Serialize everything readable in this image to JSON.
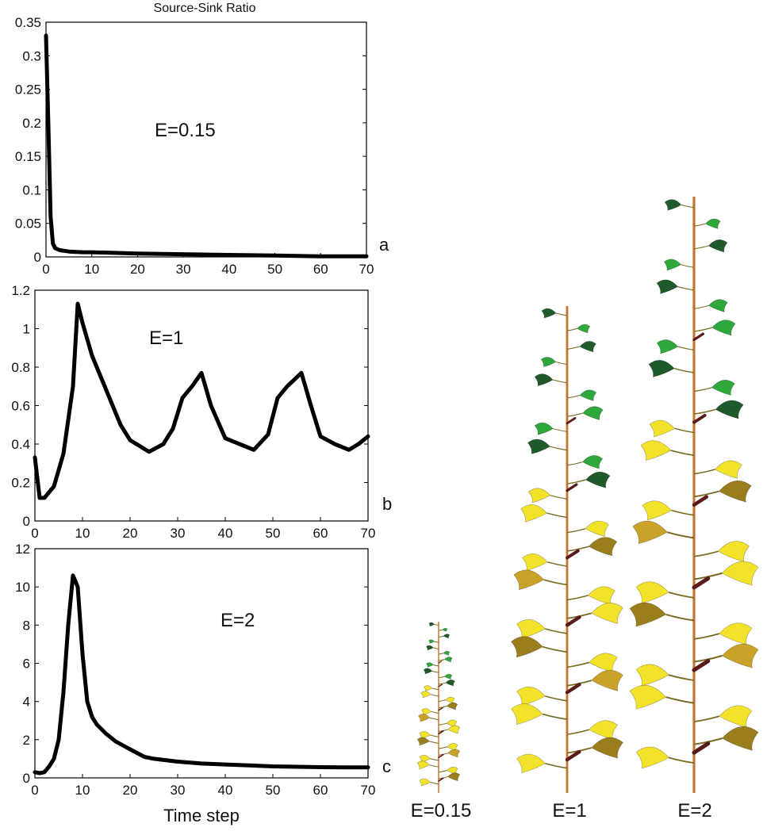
{
  "chart_data": [
    {
      "type": "line",
      "title": "Source-Sink Ratio",
      "panel_letter": "a",
      "annotation": "E=0.15",
      "xlabel": "",
      "ylabel": "",
      "xlim": [
        0,
        70
      ],
      "ylim": [
        0,
        0.35
      ],
      "xticks": [
        "0",
        "10",
        "20",
        "30",
        "40",
        "50",
        "60",
        "70"
      ],
      "yticks": [
        "0",
        "0.05",
        "0.1",
        "0.15",
        "0.2",
        "0.25",
        "0.3",
        "0.35"
      ],
      "series": [
        {
          "x": [
            0,
            0.5,
            1,
            1.5,
            2,
            3,
            5,
            8,
            10,
            15,
            20,
            30,
            40,
            50,
            60,
            70
          ],
          "y": [
            0.33,
            0.2,
            0.06,
            0.02,
            0.013,
            0.01,
            0.008,
            0.007,
            0.007,
            0.006,
            0.005,
            0.004,
            0.003,
            0.002,
            0.001,
            0.001
          ]
        }
      ]
    },
    {
      "type": "line",
      "title": "",
      "panel_letter": "b",
      "annotation": "E=1",
      "xlabel": "",
      "ylabel": "",
      "xlim": [
        0,
        70
      ],
      "ylim": [
        0,
        1.2
      ],
      "xticks": [
        "0",
        "10",
        "20",
        "30",
        "40",
        "50",
        "60",
        "70"
      ],
      "yticks": [
        "0",
        "0.2",
        "0.4",
        "0.6",
        "0.8",
        "1",
        "1.2"
      ],
      "series": [
        {
          "x": [
            0,
            1,
            2,
            4,
            6,
            8,
            9,
            10,
            12,
            15,
            18,
            20,
            24,
            27,
            29,
            31,
            33,
            35,
            37,
            40,
            43,
            46,
            49,
            51,
            53,
            56,
            58,
            60,
            63,
            66,
            68,
            70
          ],
          "y": [
            0.33,
            0.12,
            0.12,
            0.18,
            0.35,
            0.7,
            1.13,
            1.03,
            0.86,
            0.68,
            0.5,
            0.42,
            0.36,
            0.4,
            0.48,
            0.64,
            0.7,
            0.77,
            0.6,
            0.43,
            0.4,
            0.37,
            0.45,
            0.64,
            0.7,
            0.77,
            0.6,
            0.44,
            0.4,
            0.37,
            0.4,
            0.44
          ]
        }
      ]
    },
    {
      "type": "line",
      "title": "",
      "panel_letter": "c",
      "annotation": "E=2",
      "xlabel": "Time step",
      "ylabel": "",
      "xlim": [
        0,
        70
      ],
      "ylim": [
        0,
        12
      ],
      "xticks": [
        "0",
        "10",
        "20",
        "30",
        "40",
        "50",
        "60",
        "70"
      ],
      "yticks": [
        "0",
        "2",
        "4",
        "6",
        "8",
        "10",
        "12"
      ],
      "series": [
        {
          "x": [
            0,
            1,
            2,
            3,
            4,
            5,
            6,
            7,
            8,
            9,
            10,
            11,
            12,
            13,
            15,
            17,
            20,
            23,
            25,
            30,
            35,
            40,
            45,
            50,
            55,
            60,
            65,
            70
          ],
          "y": [
            0.3,
            0.25,
            0.3,
            0.6,
            1.0,
            2.0,
            4.5,
            8.0,
            10.6,
            10.0,
            6.5,
            4.0,
            3.2,
            2.8,
            2.3,
            1.9,
            1.5,
            1.1,
            1.0,
            0.85,
            0.75,
            0.7,
            0.65,
            0.6,
            0.58,
            0.56,
            0.55,
            0.55
          ]
        }
      ]
    }
  ],
  "plants": [
    {
      "label": "E=0.15"
    },
    {
      "label": "E=1"
    },
    {
      "label": "E=2"
    }
  ],
  "colors": {
    "stem": "#c8742a",
    "leaf_dark_green": "#1e5a2a",
    "leaf_green": "#2ea83a",
    "leaf_olive": "#9a7d1c",
    "leaf_yellow": "#f2e22a",
    "leaf_gold": "#c9a227",
    "fruit": "#5a1a1a"
  }
}
